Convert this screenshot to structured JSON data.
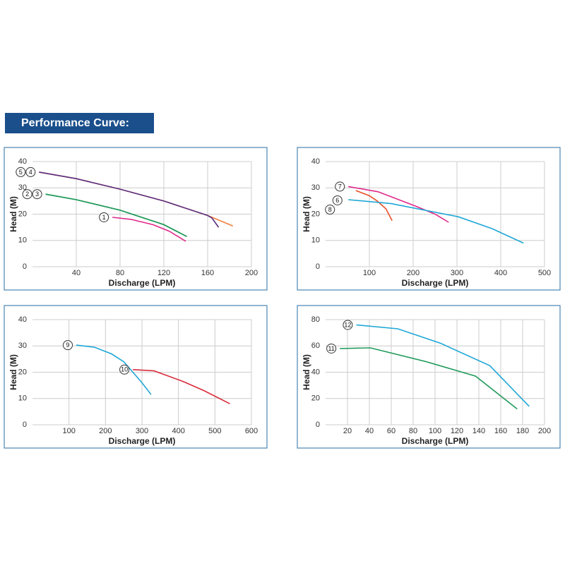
{
  "header": {
    "title": "Performance Curve:"
  },
  "chart_data": [
    {
      "type": "line",
      "x_label": "Discharge (LPM)",
      "y_label": "Head (M)",
      "xlim": [
        0,
        200
      ],
      "ylim": [
        0,
        40
      ],
      "xticks": [
        40,
        80,
        120,
        160,
        200
      ],
      "yticks": [
        0,
        10,
        20,
        30,
        40
      ],
      "grid": true,
      "series": [
        {
          "name": "4",
          "color": "#f07f3c",
          "x": [
            6,
            40,
            80,
            120,
            160,
            183
          ],
          "values": [
            36,
            33.5,
            29.5,
            25,
            19.5,
            15.5
          ]
        },
        {
          "name": "5",
          "color": "#5a2d82",
          "x": [
            6,
            40,
            80,
            120,
            160,
            164,
            170
          ],
          "values": [
            36,
            33.5,
            29.5,
            25,
            19.5,
            18.5,
            15
          ]
        },
        {
          "name": "3",
          "color": "#1f9a5a",
          "x": [
            12,
            40,
            80,
            120,
            141
          ],
          "values": [
            27.6,
            25.5,
            21.5,
            16,
            11.5
          ]
        },
        {
          "name": "2",
          "color": "#1f9a5a",
          "x": [
            12,
            40,
            80,
            120,
            141
          ],
          "values": [
            27.6,
            25.5,
            21.5,
            16,
            11.5
          ]
        },
        {
          "name": "1",
          "color": "#e0288a",
          "x": [
            73,
            90,
            110,
            125,
            140
          ],
          "values": [
            18.8,
            18,
            16,
            13.5,
            9.7
          ]
        }
      ]
    },
    {
      "type": "line",
      "x_label": "Discharge (LPM)",
      "y_label": "Head (M)",
      "xlim": [
        0,
        500
      ],
      "ylim": [
        0,
        40
      ],
      "xticks": [
        100,
        200,
        300,
        400,
        500
      ],
      "yticks": [
        0,
        10,
        20,
        30,
        40
      ],
      "grid": true,
      "series": [
        {
          "name": "7",
          "color": "#e0288a",
          "x": [
            52,
            120,
            206,
            250,
            281
          ],
          "values": [
            30.5,
            28.5,
            23,
            20,
            16.9
          ]
        },
        {
          "name": "6",
          "color": "#e8502a",
          "x": [
            69,
            100,
            118,
            138,
            152
          ],
          "values": [
            29,
            27,
            25,
            22,
            17.5
          ]
        },
        {
          "name": "8",
          "color": "#1fa7d6",
          "x": [
            52,
            150,
            303,
            380,
            452
          ],
          "values": [
            25.5,
            24,
            19,
            14.5,
            9
          ]
        }
      ]
    },
    {
      "type": "line",
      "x_label": "Discharge (LPM)",
      "y_label": "Head (M)",
      "xlim": [
        0,
        600
      ],
      "ylim": [
        0,
        40
      ],
      "xticks": [
        100,
        200,
        300,
        400,
        500,
        600
      ],
      "yticks": [
        0,
        10,
        20,
        30,
        40
      ],
      "grid": true,
      "series": [
        {
          "name": "9",
          "color": "#1fa7d6",
          "x": [
            120,
            170,
            216,
            250,
            275,
            300,
            325
          ],
          "values": [
            30.3,
            29.5,
            27,
            24,
            20,
            16,
            11.5
          ]
        },
        {
          "name": "10",
          "color": "#d92b3a",
          "x": [
            275,
            333,
            412,
            470,
            541
          ],
          "values": [
            21,
            20.5,
            16.5,
            13,
            8
          ]
        }
      ]
    },
    {
      "type": "line",
      "x_label": "Discharge (LPM)",
      "y_label": "Head (M)",
      "xlim": [
        0,
        200
      ],
      "ylim": [
        0,
        80
      ],
      "xticks": [
        20,
        40,
        60,
        80,
        100,
        120,
        140,
        160,
        180,
        200
      ],
      "yticks": [
        0,
        20,
        40,
        60,
        80
      ],
      "grid": true,
      "series": [
        {
          "name": "12",
          "color": "#1fa7d6",
          "x": [
            28,
            66,
            105,
            150,
            186
          ],
          "values": [
            76,
            73,
            62,
            45,
            14
          ]
        },
        {
          "name": "11",
          "color": "#1f9a5a",
          "x": [
            13,
            41,
            92,
            137,
            175
          ],
          "values": [
            58,
            58.5,
            48,
            37,
            12
          ]
        }
      ]
    }
  ]
}
